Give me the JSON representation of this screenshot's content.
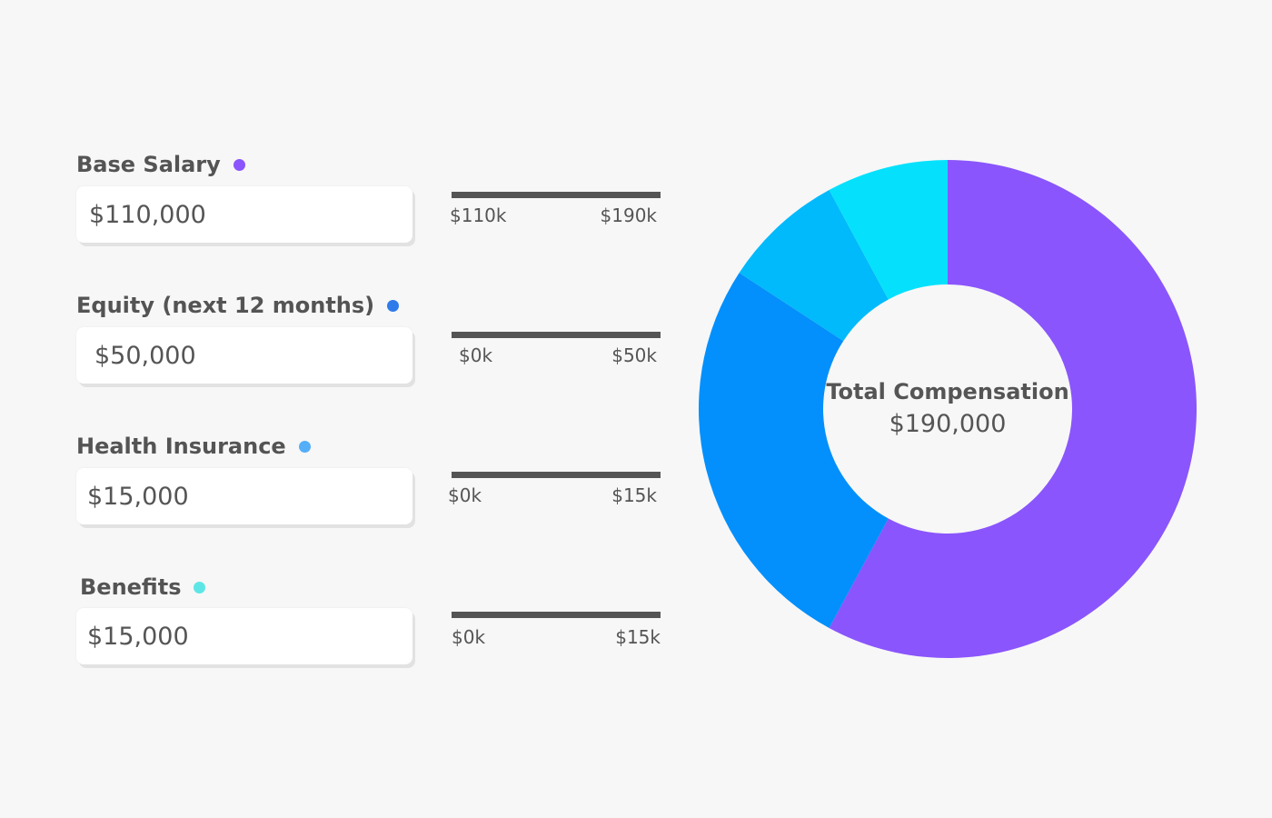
{
  "fields": [
    {
      "label": "Base Salary",
      "value": "$110,000",
      "dot_color": "#8a55fc",
      "range_min": "$110k",
      "range_max": "$190k"
    },
    {
      "label": "Equity (next 12 months)",
      "value": "$50,000",
      "dot_color": "#2f7bea",
      "range_min": "$0k",
      "range_max": "$50k"
    },
    {
      "label": "Health Insurance",
      "value": "$15,000",
      "dot_color": "#55aef8",
      "range_min": "$0k",
      "range_max": "$15k"
    },
    {
      "label": "Benefits",
      "value": "$15,000",
      "dot_color": "#5ee6e6",
      "range_min": "$0k",
      "range_max": "$15k"
    }
  ],
  "summary": {
    "title": "Total Compensation",
    "value": "$190,000"
  },
  "chart_data": {
    "type": "pie",
    "categories": [
      "Base Salary",
      "Equity (next 12 months)",
      "Health Insurance",
      "Benefits"
    ],
    "values": [
      110000,
      50000,
      15000,
      15000
    ],
    "colors": [
      "#8a55fc",
      "#0390fc",
      "#00bafc",
      "#05e1fc"
    ],
    "title": ""
  }
}
